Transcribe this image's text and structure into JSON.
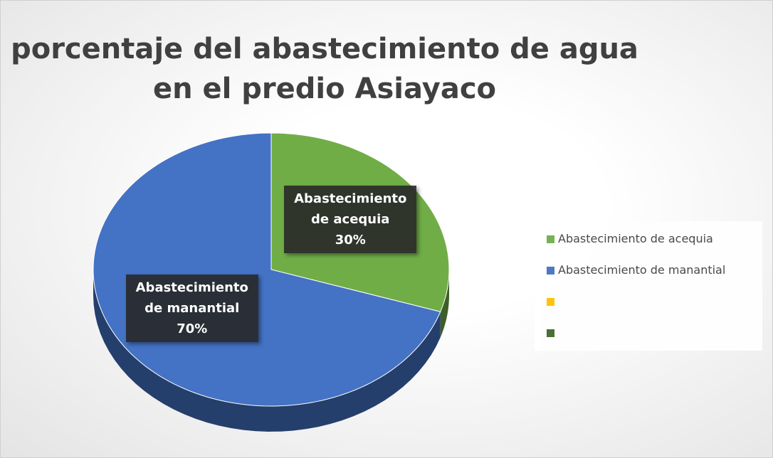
{
  "chart_data": {
    "type": "pie3d",
    "title": "porcentaje del abastecimiento de agua en el predio Asiayaco",
    "categories": [
      "Abastecimiento de acequia",
      "Abastecimiento de manantial",
      null,
      null
    ],
    "values": [
      30,
      70,
      0,
      0
    ],
    "value_labels": [
      "30%",
      "70%",
      null,
      null
    ],
    "colors": [
      "#70ad47",
      "#4472c4",
      "#ffc000",
      "#43682b"
    ],
    "legend": "right"
  }
}
